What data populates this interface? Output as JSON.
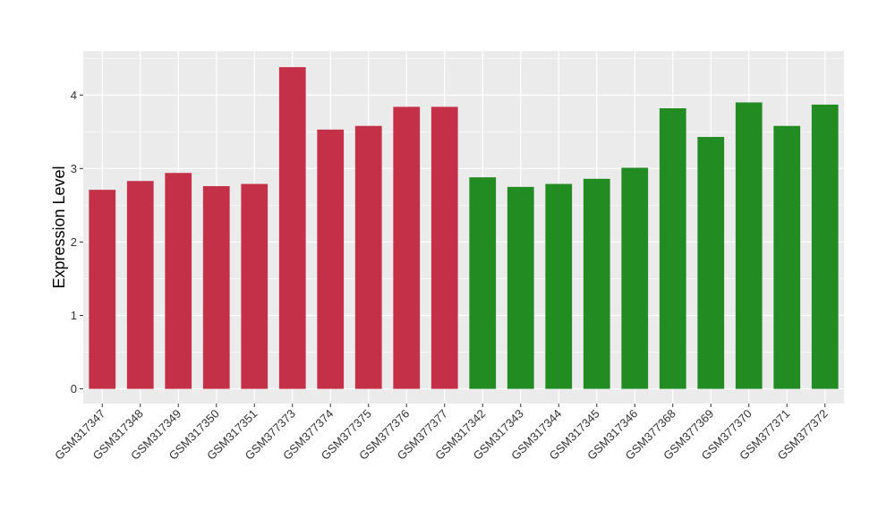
{
  "chart_data": {
    "type": "bar",
    "ylabel": "Expression Level",
    "xlabel": "",
    "ylim": [
      -0.2,
      4.6
    ],
    "yticks": [
      0,
      1,
      2,
      3,
      4
    ],
    "grid": true,
    "categories": [
      "GSM317347",
      "GSM317348",
      "GSM317349",
      "GSM317350",
      "GSM317351",
      "GSM377373",
      "GSM377374",
      "GSM377375",
      "GSM377376",
      "GSM377377",
      "GSM317342",
      "GSM317343",
      "GSM317344",
      "GSM317345",
      "GSM317346",
      "GSM377368",
      "GSM377369",
      "GSM377370",
      "GSM377371",
      "GSM377372"
    ],
    "values": [
      2.71,
      2.83,
      2.94,
      2.76,
      2.79,
      4.38,
      3.53,
      3.58,
      3.84,
      3.84,
      2.88,
      2.75,
      2.79,
      2.86,
      3.01,
      3.82,
      3.43,
      3.9,
      3.58,
      3.87
    ],
    "colors": [
      "#C33048",
      "#C33048",
      "#C33048",
      "#C33048",
      "#C33048",
      "#C33048",
      "#C33048",
      "#C33048",
      "#C33048",
      "#C33048",
      "#228B22",
      "#228B22",
      "#228B22",
      "#228B22",
      "#228B22",
      "#228B22",
      "#228B22",
      "#228B22",
      "#228B22",
      "#228B22"
    ],
    "panel_color": "#EBEBEB",
    "grid_color": "#FFFFFF"
  }
}
